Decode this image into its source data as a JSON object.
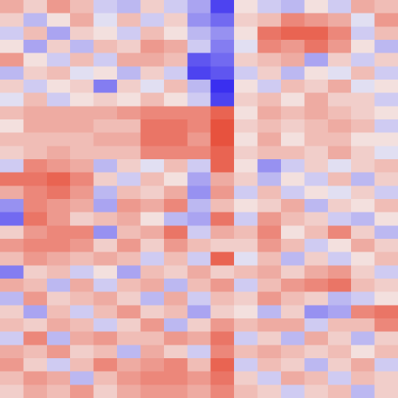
{
  "chart_data": {
    "type": "heatmap",
    "zlim": [
      -1,
      1
    ],
    "colors": {
      "low": "#3a2ff0",
      "mid": "#f4f2f2",
      "high": "#e6402a"
    },
    "values": [
      [
        0.4,
        0.2,
        0.5,
        0.3,
        -0.2,
        -0.3,
        0.2,
        -0.2,
        -0.4,
        -0.9,
        0.1,
        -0.2,
        -0.3,
        0.1,
        -0.2,
        0.4,
        0.3
      ],
      [
        0.2,
        -0.3,
        0.1,
        0.4,
        -0.1,
        0.3,
        -0.2,
        0.2,
        -0.5,
        -0.7,
        0.2,
        0.3,
        0.6,
        0.5,
        0.4,
        -0.1,
        0.5
      ],
      [
        -0.2,
        0.3,
        -0.4,
        0.2,
        0.1,
        -0.2,
        0.3,
        0.1,
        -0.3,
        -0.5,
        0.1,
        0.7,
        0.8,
        0.8,
        0.6,
        -0.2,
        0.3
      ],
      [
        0.1,
        -0.4,
        0.2,
        -0.3,
        0.3,
        0.2,
        0.5,
        0.4,
        -0.2,
        -0.6,
        -0.1,
        0.6,
        0.5,
        0.7,
        0.5,
        0.1,
        -0.3
      ],
      [
        0.5,
        0.1,
        -0.2,
        0.3,
        -0.2,
        0.4,
        0.4,
        0.3,
        -0.8,
        -0.7,
        0.2,
        0.3,
        0.4,
        -0.4,
        0.2,
        -0.2,
        0.2
      ],
      [
        -0.3,
        0.2,
        0.3,
        -0.1,
        0.1,
        -0.3,
        0.2,
        -0.2,
        -0.9,
        -0.8,
        -0.2,
        0.2,
        -0.3,
        0.1,
        -0.1,
        0.3,
        -0.2
      ],
      [
        0.2,
        -0.2,
        0.1,
        0.2,
        -0.6,
        0.2,
        -0.1,
        0.3,
        -0.3,
        -1.0,
        0.1,
        -0.2,
        0.3,
        0.2,
        0.4,
        -0.1,
        0.1
      ],
      [
        -0.1,
        0.3,
        -0.2,
        0.1,
        0.2,
        0.1,
        0.3,
        0.1,
        -0.2,
        -0.9,
        0.2,
        0.3,
        0.1,
        0.4,
        0.2,
        0.2,
        -0.2
      ],
      [
        0.3,
        0.4,
        0.4,
        0.4,
        0.4,
        0.5,
        0.6,
        0.6,
        0.6,
        0.8,
        0.1,
        0.4,
        0.3,
        0.4,
        0.3,
        0.2,
        0.1
      ],
      [
        0.1,
        0.4,
        0.4,
        0.4,
        0.3,
        0.3,
        0.7,
        0.7,
        0.6,
        0.9,
        0.2,
        0.3,
        0.2,
        0.3,
        0.4,
        0.3,
        -0.2
      ],
      [
        0.3,
        0.3,
        0.3,
        0.3,
        0.4,
        0.4,
        0.7,
        0.7,
        0.5,
        0.9,
        0.1,
        0.4,
        0.1,
        0.3,
        0.3,
        0.1,
        0.1
      ],
      [
        0.2,
        0.3,
        0.4,
        0.3,
        0.3,
        0.3,
        0.6,
        0.6,
        0.6,
        0.8,
        0.2,
        0.3,
        0.3,
        0.2,
        0.4,
        0.2,
        -0.1
      ],
      [
        -0.2,
        0.6,
        0.5,
        0.4,
        -0.3,
        0.2,
        -0.1,
        0.3,
        -0.2,
        0.8,
        0.1,
        -0.5,
        -0.2,
        0.2,
        -0.1,
        0.2,
        0.3
      ],
      [
        0.7,
        0.7,
        0.8,
        0.6,
        0.2,
        -0.2,
        0.3,
        0.1,
        -0.4,
        0.4,
        0.2,
        -0.3,
        0.1,
        -0.2,
        0.3,
        -0.3,
        0.2
      ],
      [
        0.4,
        0.6,
        0.7,
        0.5,
        -0.3,
        0.3,
        0.2,
        0.4,
        -0.5,
        0.5,
        -0.2,
        0.3,
        -0.2,
        0.1,
        -0.1,
        0.2,
        -0.2
      ],
      [
        -0.5,
        0.6,
        0.5,
        0.4,
        -0.4,
        0.5,
        0.4,
        0.6,
        -0.3,
        0.3,
        0.1,
        0.2,
        0.4,
        -0.3,
        0.2,
        0.1,
        0.3
      ],
      [
        -0.7,
        0.7,
        0.5,
        0.2,
        0.3,
        0.4,
        0.1,
        -0.3,
        -0.4,
        0.7,
        -0.2,
        0.5,
        0.3,
        0.2,
        -0.2,
        -0.3,
        0.1
      ],
      [
        0.2,
        0.5,
        0.6,
        0.6,
        -0.5,
        0.3,
        0.4,
        0.7,
        -0.2,
        0.4,
        0.3,
        0.6,
        0.1,
        0.3,
        0.6,
        0.2,
        -0.3
      ],
      [
        0.5,
        0.6,
        0.6,
        0.5,
        0.2,
        0.5,
        0.2,
        0.5,
        0.3,
        0.2,
        0.2,
        0.5,
        0.3,
        -0.2,
        0.1,
        0.4,
        0.2
      ],
      [
        0.3,
        0.5,
        0.4,
        0.3,
        0.4,
        0.3,
        -0.2,
        0.3,
        -0.2,
        0.8,
        -0.1,
        0.3,
        -0.3,
        0.2,
        -0.2,
        0.1,
        0.3
      ],
      [
        -0.6,
        0.2,
        0.3,
        -0.2,
        0.1,
        -0.4,
        0.3,
        0.2,
        0.4,
        0.2,
        0.3,
        0.4,
        0.2,
        0.4,
        0.5,
        0.2,
        -0.2
      ],
      [
        0.4,
        0.3,
        -0.3,
        0.4,
        -0.2,
        0.3,
        0.4,
        -0.3,
        0.3,
        0.5,
        -0.2,
        0.3,
        0.5,
        0.6,
        0.7,
        0.3,
        0.2
      ],
      [
        -0.3,
        0.5,
        0.2,
        0.3,
        0.4,
        0.2,
        -0.3,
        0.4,
        -0.2,
        0.3,
        0.2,
        0.5,
        0.3,
        0.2,
        -0.3,
        -0.2,
        0.1
      ],
      [
        0.2,
        -0.4,
        0.3,
        -0.2,
        0.3,
        0.5,
        0.2,
        0.3,
        -0.4,
        0.2,
        0.1,
        -0.3,
        0.2,
        -0.5,
        -0.4,
        0.6,
        0.7
      ],
      [
        0.3,
        0.2,
        0.4,
        0.3,
        -0.2,
        0.2,
        0.5,
        -0.3,
        0.2,
        0.5,
        0.3,
        0.4,
        0.4,
        -0.2,
        0.3,
        0.3,
        0.6
      ],
      [
        -0.2,
        0.6,
        -0.3,
        0.4,
        0.5,
        0.3,
        0.3,
        0.5,
        0.4,
        0.7,
        -0.2,
        0.2,
        -0.3,
        0.4,
        0.2,
        -0.3,
        0.2
      ],
      [
        0.4,
        0.3,
        0.5,
        0.2,
        0.3,
        -0.3,
        0.4,
        0.2,
        -0.2,
        0.6,
        0.3,
        0.4,
        0.3,
        0.2,
        0.3,
        0.1,
        0.3
      ],
      [
        0.5,
        0.2,
        -0.2,
        0.3,
        0.6,
        0.4,
        0.5,
        0.6,
        0.3,
        0.8,
        -0.2,
        0.3,
        0.2,
        -0.3,
        0.2,
        0.4,
        -0.2
      ],
      [
        0.3,
        0.5,
        0.4,
        -0.3,
        0.3,
        0.5,
        0.6,
        0.6,
        0.5,
        0.7,
        0.2,
        -0.2,
        0.4,
        0.3,
        -0.2,
        0.3,
        0.2
      ],
      [
        0.2,
        0.4,
        0.3,
        0.5,
        0.2,
        0.4,
        0.5,
        0.5,
        0.4,
        0.6,
        0.3,
        0.2,
        -0.2,
        0.2,
        0.3,
        -0.3,
        0.2
      ]
    ]
  }
}
